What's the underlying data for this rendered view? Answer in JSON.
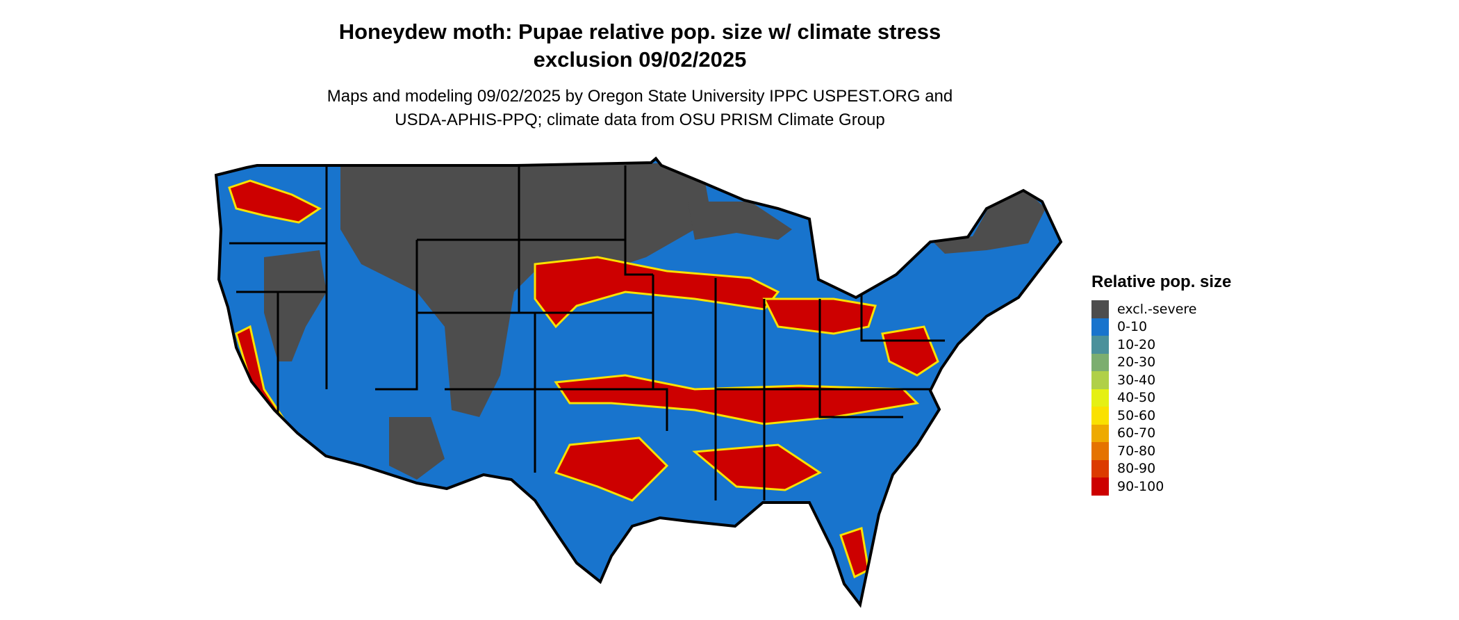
{
  "title_line1": "Honeydew moth: Pupae relative pop. size w/ climate stress",
  "title_line2": "exclusion 09/02/2025",
  "subtitle_line1": "Maps and modeling 09/02/2025 by Oregon State University IPPC USPEST.ORG and",
  "subtitle_line2": "USDA-APHIS-PPQ; climate data from OSU PRISM Climate Group",
  "legend": {
    "title": "Relative pop. size",
    "items": [
      {
        "label": "excl.-severe",
        "color": "#4d4d4d"
      },
      {
        "label": "0-10",
        "color": "#1874cd"
      },
      {
        "label": "10-20",
        "color": "#4a919b"
      },
      {
        "label": "20-30",
        "color": "#7cae6f"
      },
      {
        "label": "30-40",
        "color": "#b0d048"
      },
      {
        "label": "40-50",
        "color": "#e5f014"
      },
      {
        "label": "50-60",
        "color": "#fae100"
      },
      {
        "label": "60-70",
        "color": "#eeaa00"
      },
      {
        "label": "70-80",
        "color": "#e57300"
      },
      {
        "label": "80-90",
        "color": "#dc3b00"
      },
      {
        "label": "90-100",
        "color": "#cd0000"
      }
    ]
  }
}
